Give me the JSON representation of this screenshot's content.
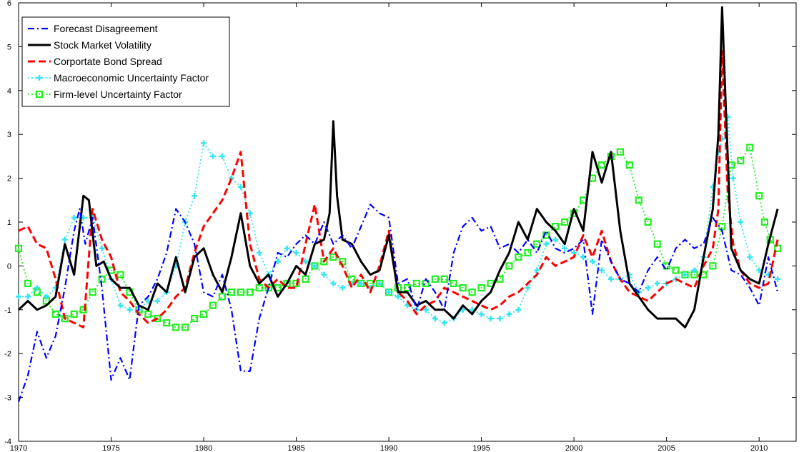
{
  "chart_data": {
    "type": "line",
    "xlim": [
      1970,
      2012
    ],
    "ylim": [
      -4,
      6
    ],
    "x_ticks": [
      1970,
      1975,
      1980,
      1985,
      1990,
      1995,
      2000,
      2005,
      2010
    ],
    "y_ticks": [
      -4,
      -3,
      -2,
      -1,
      0,
      1,
      2,
      3,
      4,
      5,
      6
    ],
    "grid": false,
    "legend_position": "top-left",
    "series": [
      {
        "name": "Forecast Disagreement",
        "color": "#0000ff",
        "style": "dash-dot",
        "x": [
          1970.0,
          1970.5,
          1971.0,
          1971.5,
          1972.0,
          1972.5,
          1973.0,
          1973.3,
          1973.6,
          1974.0,
          1974.5,
          1975.0,
          1975.5,
          1976.0,
          1976.5,
          1977.0,
          1977.5,
          1978.0,
          1978.5,
          1979.0,
          1979.5,
          1980.0,
          1980.5,
          1981.0,
          1981.5,
          1982.0,
          1982.5,
          1983.0,
          1983.5,
          1984.0,
          1984.5,
          1985.0,
          1985.5,
          1986.0,
          1986.5,
          1987.0,
          1987.5,
          1988.0,
          1988.5,
          1989.0,
          1989.5,
          1990.0,
          1990.5,
          1991.0,
          1991.5,
          1992.0,
          1992.5,
          1993.0,
          1993.5,
          1994.0,
          1994.5,
          1995.0,
          1995.5,
          1996.0,
          1996.5,
          1997.0,
          1997.5,
          1998.0,
          1998.5,
          1999.0,
          1999.5,
          2000.0,
          2000.5,
          2001.0,
          2001.5,
          2002.0,
          2002.5,
          2003.0,
          2003.5,
          2004.0,
          2004.5,
          2005.0,
          2005.5,
          2006.0,
          2006.5,
          2007.0,
          2007.5,
          2008.0,
          2008.5,
          2009.0,
          2009.5,
          2010.0,
          2010.5,
          2011.0
        ],
        "y": [
          -3.1,
          -2.5,
          -1.5,
          -2.1,
          -1.6,
          -0.5,
          0.8,
          1.3,
          0.5,
          1.1,
          -0.5,
          -2.6,
          -2.1,
          -2.6,
          -0.9,
          -0.7,
          -0.3,
          0.3,
          1.3,
          1.0,
          0.5,
          -0.6,
          -0.7,
          -0.2,
          -1.0,
          -2.4,
          -2.4,
          -1.2,
          -0.5,
          0.3,
          0.2,
          0.5,
          0.7,
          0.5,
          1.0,
          0.5,
          0.7,
          0.4,
          0.9,
          1.4,
          1.2,
          1.1,
          -0.4,
          -0.3,
          -1.0,
          -0.3,
          -0.6,
          -1.0,
          0.3,
          0.9,
          1.1,
          0.8,
          0.9,
          0.4,
          0.5,
          0.3,
          0.6,
          0.3,
          0.8,
          0.4,
          0.3,
          0.4,
          0.6,
          -1.1,
          0.6,
          0.1,
          -0.3,
          -0.4,
          -0.6,
          -0.1,
          0.2,
          -0.1,
          0.4,
          0.6,
          0.4,
          0.5,
          1.1,
          0.8,
          -0.1,
          -0.2,
          -0.5,
          -0.9,
          0.2,
          -0.6
        ]
      },
      {
        "name": "Stock Market Volatility",
        "color": "#000000",
        "style": "solid",
        "x": [
          1970.0,
          1970.5,
          1971.0,
          1971.5,
          1972.0,
          1972.5,
          1973.0,
          1973.5,
          1973.8,
          1974.2,
          1974.6,
          1975.0,
          1975.5,
          1976.0,
          1976.5,
          1977.0,
          1977.5,
          1978.0,
          1978.5,
          1979.0,
          1979.5,
          1980.0,
          1980.5,
          1981.0,
          1981.5,
          1982.0,
          1982.5,
          1983.0,
          1983.5,
          1984.0,
          1984.5,
          1985.0,
          1985.5,
          1986.0,
          1986.5,
          1986.8,
          1987.0,
          1987.2,
          1987.5,
          1988.0,
          1988.5,
          1989.0,
          1989.5,
          1990.0,
          1990.5,
          1991.0,
          1991.5,
          1992.0,
          1992.5,
          1993.0,
          1993.5,
          1994.0,
          1994.5,
          1995.0,
          1995.5,
          1996.0,
          1996.5,
          1997.0,
          1997.5,
          1998.0,
          1998.5,
          1999.0,
          1999.5,
          2000.0,
          2000.5,
          2001.0,
          2001.5,
          2002.0,
          2002.5,
          2003.0,
          2003.5,
          2004.0,
          2004.5,
          2005.0,
          2005.5,
          2006.0,
          2006.5,
          2007.0,
          2007.5,
          2007.8,
          2008.0,
          2008.2,
          2008.5,
          2009.0,
          2009.5,
          2010.0,
          2010.5,
          2011.0
        ],
        "y": [
          -1.0,
          -0.8,
          -1.0,
          -0.9,
          -0.7,
          0.5,
          -0.2,
          1.6,
          1.5,
          0.0,
          0.1,
          -0.3,
          -0.5,
          -0.5,
          -0.9,
          -1.0,
          -0.4,
          -0.6,
          0.2,
          -0.6,
          0.2,
          0.4,
          -0.2,
          -0.6,
          0.2,
          1.2,
          0.0,
          -0.4,
          -0.2,
          -0.7,
          -0.4,
          0.0,
          -0.2,
          0.5,
          0.6,
          1.2,
          3.3,
          1.6,
          0.6,
          0.5,
          0.1,
          -0.2,
          -0.1,
          0.7,
          -0.6,
          -0.6,
          -0.9,
          -0.8,
          -1.0,
          -1.0,
          -1.2,
          -0.9,
          -1.1,
          -0.8,
          -0.6,
          -0.1,
          0.3,
          1.0,
          0.6,
          1.3,
          1.0,
          0.8,
          0.5,
          1.3,
          0.8,
          2.6,
          1.9,
          2.6,
          0.8,
          -0.4,
          -0.7,
          -1.0,
          -1.2,
          -1.2,
          -1.2,
          -1.4,
          -1.0,
          0.2,
          1.3,
          3.0,
          5.9,
          3.6,
          0.4,
          -0.1,
          -0.3,
          -0.4,
          0.5,
          1.3
        ]
      },
      {
        "name": "Corportate Bond Spread",
        "color": "#ff0000",
        "style": "dashed",
        "x": [
          1970.0,
          1970.5,
          1971.0,
          1971.5,
          1972.0,
          1972.5,
          1973.0,
          1973.5,
          1974.0,
          1974.5,
          1975.0,
          1975.5,
          1976.0,
          1976.5,
          1977.0,
          1977.5,
          1978.0,
          1978.5,
          1979.0,
          1979.5,
          1980.0,
          1980.5,
          1981.0,
          1981.5,
          1982.0,
          1982.5,
          1983.0,
          1983.5,
          1984.0,
          1984.5,
          1985.0,
          1985.5,
          1986.0,
          1986.5,
          1987.0,
          1987.5,
          1988.0,
          1988.5,
          1989.0,
          1989.5,
          1990.0,
          1990.5,
          1991.0,
          1991.5,
          1992.0,
          1992.5,
          1993.0,
          1993.5,
          1994.0,
          1994.5,
          1995.0,
          1995.5,
          1996.0,
          1996.5,
          1997.0,
          1997.5,
          1998.0,
          1998.5,
          1999.0,
          1999.5,
          2000.0,
          2000.5,
          2001.0,
          2001.5,
          2002.0,
          2002.5,
          2003.0,
          2003.5,
          2004.0,
          2004.5,
          2005.0,
          2005.5,
          2006.0,
          2006.5,
          2007.0,
          2007.5,
          2007.8,
          2008.0,
          2008.3,
          2008.6,
          2009.0,
          2009.5,
          2010.0,
          2010.5,
          2011.0
        ],
        "y": [
          0.8,
          0.9,
          0.5,
          0.4,
          -0.3,
          -1.2,
          -1.3,
          -1.4,
          1.3,
          0.6,
          0.2,
          -0.6,
          -0.8,
          -1.1,
          -1.3,
          -1.2,
          -1.0,
          -0.7,
          -0.5,
          0.3,
          0.9,
          1.2,
          1.5,
          2.0,
          2.6,
          0.5,
          -0.3,
          -0.5,
          -0.3,
          -0.5,
          -0.5,
          0.5,
          1.4,
          0.1,
          0.4,
          0.0,
          -0.5,
          -0.2,
          -0.6,
          0.0,
          0.8,
          -0.6,
          -0.8,
          -1.1,
          -0.9,
          -0.8,
          -0.5,
          -0.6,
          -0.7,
          -0.8,
          -0.9,
          -1.0,
          -0.9,
          -0.7,
          -0.6,
          -0.4,
          -0.2,
          0.2,
          0.0,
          0.1,
          0.2,
          0.7,
          0.2,
          0.8,
          0.1,
          -0.3,
          -0.6,
          -0.7,
          -0.8,
          -0.6,
          -0.4,
          -0.3,
          -0.4,
          -0.5,
          0.0,
          0.4,
          1.3,
          4.9,
          1.7,
          0.5,
          -0.1,
          -0.4,
          -0.5,
          -0.4,
          0.6
        ]
      },
      {
        "name": "Macroeconomic Uncertainty Factor",
        "color": "#33e6f2",
        "style": "dotted-plus",
        "x": [
          1970.0,
          1970.5,
          1971.0,
          1971.5,
          1972.0,
          1972.5,
          1973.0,
          1973.5,
          1974.0,
          1974.5,
          1975.0,
          1975.5,
          1976.0,
          1976.5,
          1977.0,
          1977.5,
          1978.0,
          1978.5,
          1979.0,
          1979.5,
          1980.0,
          1980.5,
          1981.0,
          1981.5,
          1982.0,
          1982.5,
          1983.0,
          1983.5,
          1984.0,
          1984.5,
          1985.0,
          1985.5,
          1986.0,
          1986.5,
          1987.0,
          1987.5,
          1988.0,
          1988.5,
          1989.0,
          1989.5,
          1990.0,
          1990.5,
          1991.0,
          1991.5,
          1992.0,
          1992.5,
          1993.0,
          1993.5,
          1994.0,
          1994.5,
          1995.0,
          1995.5,
          1996.0,
          1996.5,
          1997.0,
          1997.5,
          1998.0,
          1998.5,
          1999.0,
          1999.5,
          2000.0,
          2000.5,
          2001.0,
          2001.5,
          2002.0,
          2002.5,
          2003.0,
          2003.5,
          2004.0,
          2004.5,
          2005.0,
          2005.5,
          2006.0,
          2006.5,
          2007.0,
          2007.5,
          2007.8,
          2008.0,
          2008.3,
          2008.6,
          2009.0,
          2009.5,
          2010.0,
          2010.5,
          2011.0
        ],
        "y": [
          -0.7,
          -0.7,
          -0.5,
          -0.7,
          -0.5,
          0.6,
          1.1,
          1.1,
          1.1,
          0.4,
          -0.3,
          -0.9,
          -1.0,
          -1.0,
          -0.8,
          -0.8,
          -0.6,
          0.0,
          1.0,
          1.6,
          2.8,
          2.5,
          2.5,
          2.0,
          1.8,
          1.2,
          0.3,
          -0.2,
          0.1,
          0.4,
          0.3,
          0.1,
          0.0,
          -0.2,
          -0.4,
          -0.5,
          -0.4,
          -0.4,
          -0.5,
          -0.4,
          -0.6,
          -0.7,
          -0.9,
          -1.0,
          -1.0,
          -1.2,
          -1.3,
          -1.2,
          -1.0,
          -1.0,
          -1.1,
          -1.2,
          -1.2,
          -1.1,
          -1.0,
          -0.5,
          -0.1,
          0.5,
          0.6,
          0.4,
          0.3,
          0.2,
          0.1,
          -0.1,
          -0.3,
          -0.3,
          -0.2,
          -0.6,
          -0.5,
          -0.4,
          -0.4,
          -0.3,
          -0.2,
          -0.1,
          0.2,
          1.8,
          2.6,
          2.9,
          3.4,
          2.0,
          1.0,
          0.2,
          -0.1,
          -0.2,
          -0.3
        ]
      },
      {
        "name": "Firm-level Uncertainty Factor",
        "color": "#22ee22",
        "style": "dotted-square",
        "x": [
          1970.0,
          1970.5,
          1971.0,
          1971.5,
          1972.0,
          1972.5,
          1973.0,
          1973.5,
          1974.0,
          1974.5,
          1975.0,
          1975.5,
          1976.0,
          1976.5,
          1977.0,
          1977.5,
          1978.0,
          1978.5,
          1979.0,
          1979.5,
          1980.0,
          1980.5,
          1981.0,
          1981.5,
          1982.0,
          1982.5,
          1983.0,
          1983.5,
          1984.0,
          1984.5,
          1985.0,
          1985.5,
          1986.0,
          1986.5,
          1987.0,
          1987.5,
          1988.0,
          1988.5,
          1989.0,
          1989.5,
          1990.0,
          1990.5,
          1991.0,
          1991.5,
          1992.0,
          1992.5,
          1993.0,
          1993.5,
          1994.0,
          1994.5,
          1995.0,
          1995.5,
          1996.0,
          1996.5,
          1997.0,
          1997.5,
          1998.0,
          1998.5,
          1999.0,
          1999.5,
          2000.0,
          2000.5,
          2001.0,
          2001.5,
          2002.0,
          2002.5,
          2003.0,
          2003.5,
          2004.0,
          2004.5,
          2005.0,
          2005.5,
          2006.0,
          2006.5,
          2007.0,
          2007.5,
          2008.0,
          2008.5,
          2009.0,
          2009.5,
          2010.0,
          2010.3,
          2010.6,
          2011.0
        ],
        "y": [
          0.4,
          -0.4,
          -0.6,
          -0.8,
          -1.1,
          -1.2,
          -1.1,
          -1.0,
          -0.6,
          -0.3,
          -0.1,
          -0.2,
          -0.6,
          -1.0,
          -1.1,
          -1.2,
          -1.3,
          -1.4,
          -1.4,
          -1.2,
          -1.1,
          -0.9,
          -0.7,
          -0.6,
          -0.6,
          -0.6,
          -0.5,
          -0.5,
          -0.5,
          -0.4,
          -0.4,
          -0.3,
          0.0,
          0.1,
          0.2,
          0.1,
          -0.3,
          -0.4,
          -0.4,
          -0.4,
          -0.6,
          -0.5,
          -0.5,
          -0.4,
          -0.4,
          -0.3,
          -0.3,
          -0.4,
          -0.5,
          -0.6,
          -0.5,
          -0.4,
          -0.3,
          0.0,
          0.2,
          0.3,
          0.5,
          0.7,
          0.9,
          1.0,
          1.2,
          1.5,
          2.0,
          2.3,
          2.5,
          2.6,
          2.3,
          1.5,
          1.0,
          0.5,
          0.0,
          -0.1,
          -0.2,
          -0.2,
          -0.2,
          0.0,
          0.9,
          2.3,
          2.4,
          2.7,
          1.6,
          1.0,
          0.6,
          0.4
        ]
      }
    ]
  }
}
